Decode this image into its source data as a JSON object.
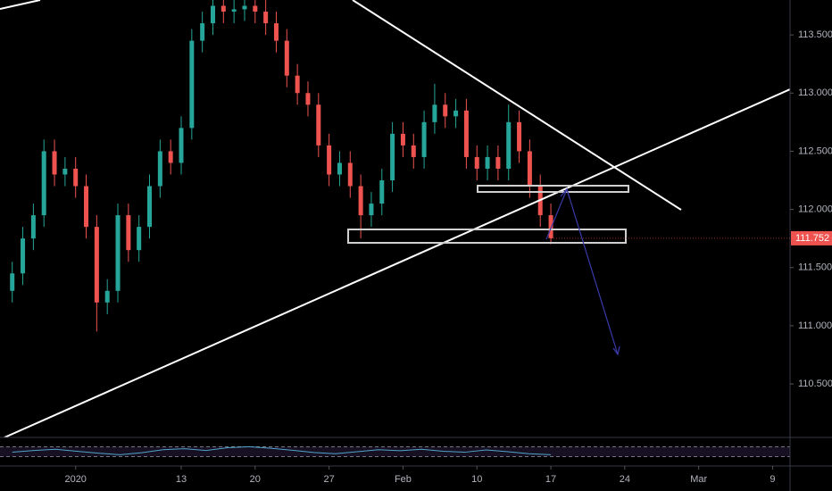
{
  "chart_data": {
    "type": "candlestick",
    "up_color": "#26a69a",
    "down_color": "#ef5350",
    "x": [
      -3,
      -2,
      -1,
      0,
      1,
      2,
      3,
      4,
      5,
      6,
      7,
      8,
      9,
      10,
      11,
      12,
      13,
      14,
      15,
      16,
      17,
      18,
      19,
      20,
      21,
      22,
      23,
      24,
      25,
      26,
      27,
      28,
      29,
      30,
      31,
      32,
      33,
      34,
      35,
      36,
      37,
      38,
      39,
      40,
      41,
      42,
      43,
      44,
      45,
      46,
      47,
      48
    ],
    "open": [
      111.3,
      111.45,
      111.75,
      111.95,
      112.5,
      112.3,
      112.35,
      112.2,
      111.85,
      111.2,
      111.3,
      111.95,
      111.65,
      111.85,
      112.2,
      112.5,
      112.4,
      112.7,
      113.45,
      113.6,
      113.75,
      113.7,
      113.72,
      113.75,
      113.7,
      113.6,
      113.45,
      113.15,
      113.0,
      112.9,
      112.55,
      112.3,
      112.4,
      112.2,
      111.95,
      112.05,
      112.25,
      112.65,
      112.55,
      112.45,
      112.75,
      112.9,
      112.8,
      112.85,
      112.45,
      112.35,
      112.45,
      112.35,
      112.75,
      112.5,
      112.2,
      111.95
    ],
    "high": [
      111.55,
      111.85,
      112.05,
      112.6,
      112.6,
      112.45,
      112.45,
      112.3,
      111.95,
      111.4,
      112.05,
      112.05,
      111.95,
      112.3,
      112.6,
      112.6,
      112.8,
      113.55,
      113.7,
      113.85,
      113.85,
      113.82,
      113.85,
      113.85,
      113.8,
      113.7,
      113.55,
      113.25,
      113.1,
      113.0,
      112.65,
      112.5,
      112.5,
      112.3,
      112.15,
      112.35,
      112.75,
      112.75,
      112.65,
      112.85,
      113.08,
      113.0,
      112.95,
      112.95,
      112.55,
      112.55,
      112.55,
      112.9,
      112.85,
      112.6,
      112.3,
      112.05
    ],
    "low": [
      111.2,
      111.35,
      111.65,
      111.85,
      112.2,
      112.2,
      112.1,
      111.75,
      110.95,
      111.1,
      111.2,
      111.55,
      111.55,
      111.75,
      112.1,
      112.3,
      112.3,
      112.6,
      113.35,
      113.5,
      113.6,
      113.6,
      113.62,
      113.6,
      113.5,
      113.35,
      113.05,
      112.9,
      112.8,
      112.45,
      112.2,
      112.2,
      112.1,
      111.75,
      111.85,
      111.95,
      112.15,
      112.45,
      112.35,
      112.35,
      112.65,
      112.7,
      112.7,
      112.35,
      112.25,
      112.25,
      112.25,
      112.25,
      112.4,
      112.1,
      111.85,
      111.7
    ],
    "close": [
      111.45,
      111.75,
      111.95,
      112.5,
      112.3,
      112.35,
      112.2,
      111.85,
      111.2,
      111.3,
      111.95,
      111.65,
      111.85,
      112.2,
      112.5,
      112.4,
      112.7,
      113.45,
      113.6,
      113.75,
      113.7,
      113.72,
      113.75,
      113.7,
      113.6,
      113.45,
      113.15,
      113.0,
      112.9,
      112.55,
      112.3,
      112.4,
      112.2,
      111.95,
      112.05,
      112.25,
      112.65,
      112.55,
      112.45,
      112.75,
      112.9,
      112.8,
      112.85,
      112.45,
      112.35,
      112.45,
      112.35,
      112.75,
      112.5,
      112.2,
      111.95,
      111.752
    ],
    "xlim": [
      -4.16,
      70.65
    ],
    "xticks": [
      {
        "value": 3,
        "label": "2020"
      },
      13,
      20,
      27,
      {
        "value": 34,
        "label": "Feb"
      },
      {
        "value": 41,
        "label": "10"
      },
      {
        "value": 48,
        "label": "17"
      },
      {
        "value": 55,
        "label": "24"
      },
      {
        "value": 62,
        "label": "Mar"
      },
      {
        "value": 69,
        "label": "9"
      }
    ],
    "ylim": [
      110.04,
      113.8
    ],
    "yticks": [
      {
        "value": 113.5,
        "label": "113.500"
      },
      {
        "value": 113.0,
        "label": "113.000"
      },
      {
        "value": 112.5,
        "label": "112.500"
      },
      {
        "value": 112.0,
        "label": "112.000"
      },
      {
        "value": 111.5,
        "label": "111.500"
      },
      {
        "value": 111.0,
        "label": "111.000"
      },
      {
        "value": 110.5,
        "label": "110.500"
      }
    ],
    "oscillator": {
      "color": "#4fa3c7",
      "ylim": [
        0,
        100
      ],
      "bands": [
        30,
        70
      ],
      "values": [
        48,
        55,
        60,
        52,
        44,
        38,
        46,
        58,
        62,
        55,
        66,
        70,
        64,
        56,
        47,
        42,
        50,
        58,
        54,
        60,
        52,
        48,
        57,
        50,
        42,
        38
      ]
    }
  }
}
